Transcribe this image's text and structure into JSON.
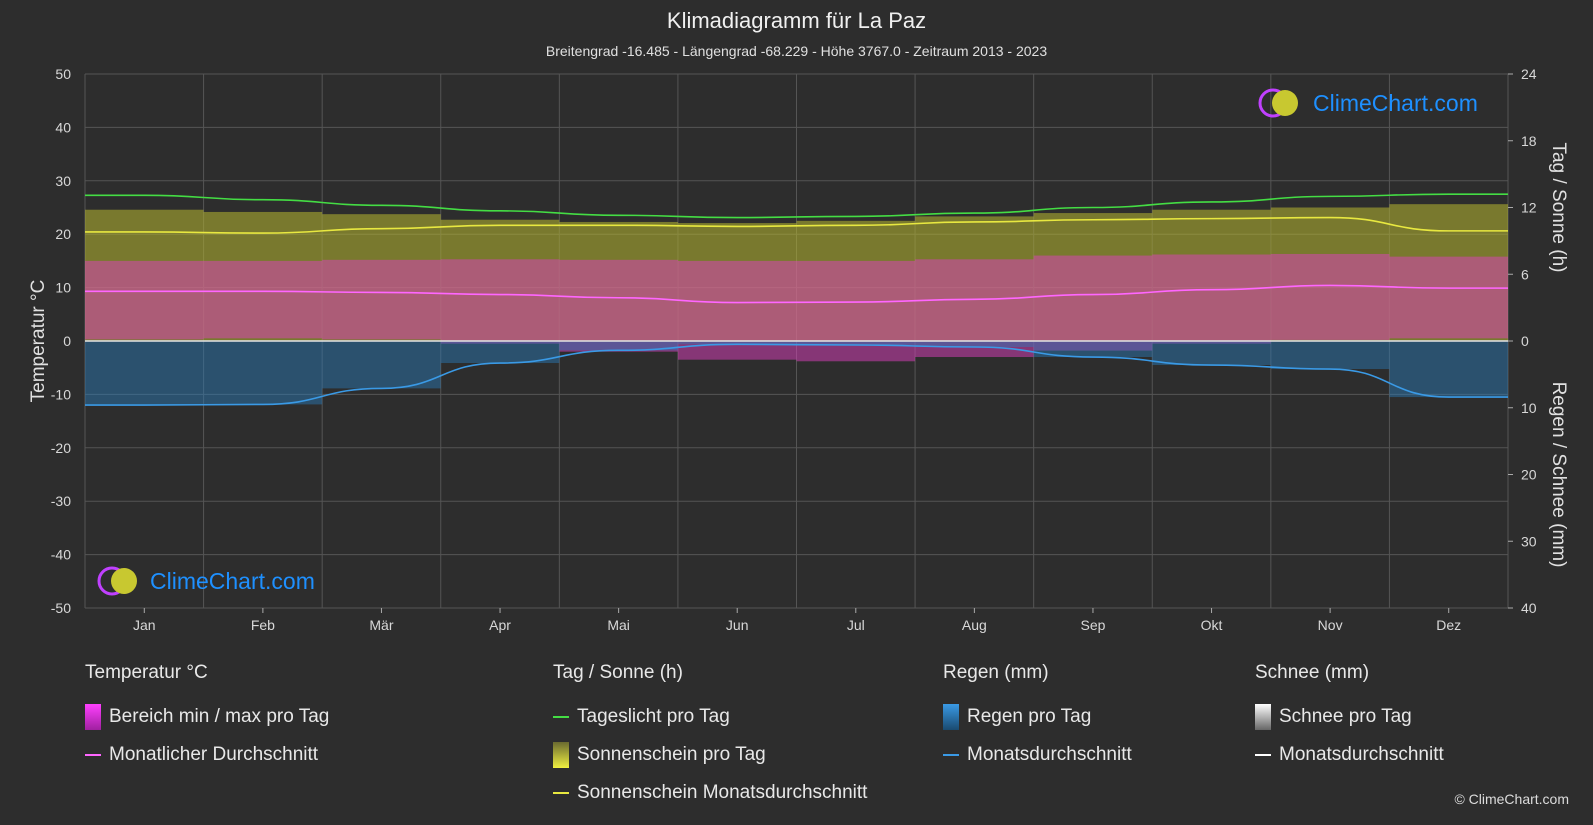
{
  "title": "Klimadiagramm für La Paz",
  "subtitle": "Breitengrad -16.485 - Längengrad -68.229 - Höhe 3767.0 - Zeitraum 2013 - 2023",
  "watermark": "ClimeChart.com",
  "copyright": "© ClimeChart.com",
  "colors": {
    "background": "#2d2d2d",
    "grid": "#555555",
    "temp_range": "#e040c0",
    "temp_avg": "#ff66ff",
    "daylight": "#44dd44",
    "sunshine_bar": "#b8b830",
    "sunshine_avg": "#e8e840",
    "rain_bar": "#2a7fbf",
    "rain_avg": "#3a9ae6",
    "snow_bar": "#888888",
    "snow_avg": "#ffffff",
    "brand": "#1e90ff"
  },
  "legend": {
    "temp": {
      "heading": "Temperatur °C",
      "items": [
        {
          "label": "Bereich min / max pro Tag",
          "icon": "temp-range-swatch"
        },
        {
          "label": "Monatlicher Durchschnitt",
          "icon": "temp-avg-line"
        }
      ]
    },
    "sun": {
      "heading": "Tag / Sonne (h)",
      "items": [
        {
          "label": "Tageslicht pro Tag",
          "icon": "daylight-line"
        },
        {
          "label": "Sonnenschein pro Tag",
          "icon": "sunshine-swatch"
        },
        {
          "label": "Sonnenschein Monatsdurchschnitt",
          "icon": "sunshine-avg-line"
        }
      ]
    },
    "rain": {
      "heading": "Regen (mm)",
      "items": [
        {
          "label": "Regen pro Tag",
          "icon": "rain-swatch"
        },
        {
          "label": "Monatsdurchschnitt",
          "icon": "rain-avg-line"
        }
      ]
    },
    "snow": {
      "heading": "Schnee (mm)",
      "items": [
        {
          "label": "Schnee pro Tag",
          "icon": "snow-swatch"
        },
        {
          "label": "Monatsdurchschnitt",
          "icon": "snow-avg-line"
        }
      ]
    }
  },
  "chart_data": {
    "type": "line",
    "title": "Klimadiagramm für La Paz",
    "categories": [
      "Jan",
      "Feb",
      "Mär",
      "Apr",
      "Mai",
      "Jun",
      "Jul",
      "Aug",
      "Sep",
      "Okt",
      "Nov",
      "Dez"
    ],
    "y_left": {
      "label": "Temperatur °C",
      "range": [
        -50,
        50
      ],
      "ticks": [
        50,
        40,
        30,
        20,
        10,
        0,
        -10,
        -20,
        -30,
        -40,
        -50
      ]
    },
    "y_right_top": {
      "label": "Tag / Sonne (h)",
      "range": [
        0,
        24
      ],
      "ticks": [
        24,
        18,
        12,
        6,
        0
      ]
    },
    "y_right_bottom": {
      "label": "Regen / Schnee (mm)",
      "range": [
        0,
        40
      ],
      "ticks": [
        0,
        10,
        20,
        30,
        40
      ]
    },
    "grid": true,
    "series": [
      {
        "name": "Tageslicht pro Tag",
        "axis": "hours",
        "values": [
          13.1,
          12.7,
          12.2,
          11.7,
          11.3,
          11.1,
          11.2,
          11.5,
          12.0,
          12.5,
          13.0,
          13.2
        ]
      },
      {
        "name": "Sonnenschein Monatsdurchschnitt",
        "axis": "hours",
        "values": [
          9.8,
          9.7,
          10.1,
          10.4,
          10.4,
          10.3,
          10.4,
          10.7,
          10.9,
          11.0,
          11.1,
          9.9
        ]
      },
      {
        "name": "Sonnenschein pro Tag",
        "axis": "hours",
        "values": [
          11.8,
          11.6,
          11.4,
          10.9,
          10.7,
          10.6,
          10.8,
          11.2,
          11.5,
          11.8,
          12.0,
          12.3
        ]
      },
      {
        "name": "Monatlicher Durchschnitt",
        "axis": "temp",
        "values": [
          9.3,
          9.3,
          9.1,
          8.7,
          8.1,
          7.2,
          7.3,
          7.8,
          8.7,
          9.6,
          10.4,
          9.9
        ]
      },
      {
        "name": "Bereich min / max pro Tag",
        "axis": "temp",
        "min": [
          0.3,
          0.5,
          0.3,
          -0.5,
          -2.0,
          -3.5,
          -3.8,
          -3.0,
          -1.8,
          -0.5,
          0.2,
          0.5
        ],
        "max": [
          15.0,
          15.0,
          15.2,
          15.3,
          15.2,
          15.0,
          15.0,
          15.3,
          16.0,
          16.2,
          16.3,
          15.8
        ]
      },
      {
        "name": "Regen Monatsdurchschnitt",
        "axis": "precip",
        "values": [
          9.6,
          9.5,
          7.1,
          3.3,
          1.4,
          0.5,
          0.6,
          0.9,
          2.4,
          3.6,
          4.2,
          8.4
        ]
      },
      {
        "name": "Schnee Monatsdurchschnitt",
        "axis": "precip",
        "values": [
          0,
          0,
          0,
          0,
          0,
          0,
          0,
          0,
          0,
          0,
          0,
          0
        ]
      }
    ]
  }
}
